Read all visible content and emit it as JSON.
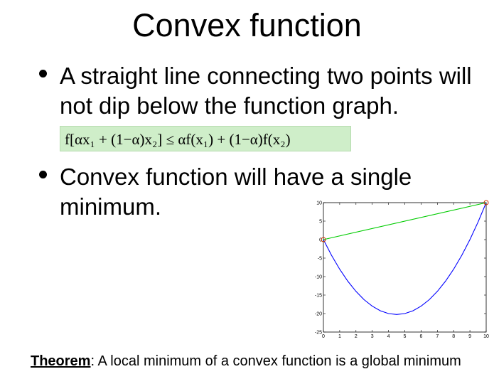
{
  "slide": {
    "title": "Convex function",
    "bullets": [
      {
        "line1": "A straight line connecting two points will",
        "line2": "not dip below the function graph."
      },
      {
        "line1": "Convex function will have a single",
        "line2": "minimum."
      }
    ],
    "formula": {
      "text": "f[αx₁ + (1−α)x₂] ≤ αf(x₁) + (1−α)f(x₂)",
      "background": "#cfeec9"
    },
    "theorem": {
      "label": "Theorem",
      "text": ": A local minimum of a convex function is a global minimum"
    }
  },
  "chart_data": {
    "type": "line",
    "title": "",
    "xlabel": "",
    "ylabel": "",
    "xlim": [
      0,
      10
    ],
    "ylim": [
      -25,
      10
    ],
    "xticks": [
      "0",
      "1",
      "2",
      "3",
      "4",
      "5",
      "6",
      "7",
      "8",
      "9",
      "10"
    ],
    "yticks": [
      "10",
      "5",
      "0",
      "-5",
      "-10",
      "-15",
      "-20",
      "-25"
    ],
    "grid": false,
    "series": [
      {
        "color": "#0000ff",
        "x": [
          0,
          0.5,
          1,
          1.5,
          2,
          2.5,
          3,
          3.5,
          4,
          4.5,
          5,
          5.5,
          6,
          6.5,
          7,
          7.5,
          8,
          8.5,
          9,
          9.5,
          10
        ],
        "y": [
          0,
          -4.25,
          -8,
          -11.25,
          -14,
          -16.25,
          -18,
          -19.25,
          -20,
          -20.25,
          -20,
          -19.25,
          -18,
          -16.25,
          -14,
          -11.25,
          -8,
          -4.25,
          0,
          4.75,
          10
        ]
      },
      {
        "color": "#00cc00",
        "x": [
          0,
          10
        ],
        "y": [
          0,
          10
        ]
      }
    ],
    "markers": [
      {
        "x": 0,
        "y": 0,
        "color": "#cc3300"
      },
      {
        "x": 10,
        "y": 10,
        "color": "#cc3300"
      }
    ]
  }
}
